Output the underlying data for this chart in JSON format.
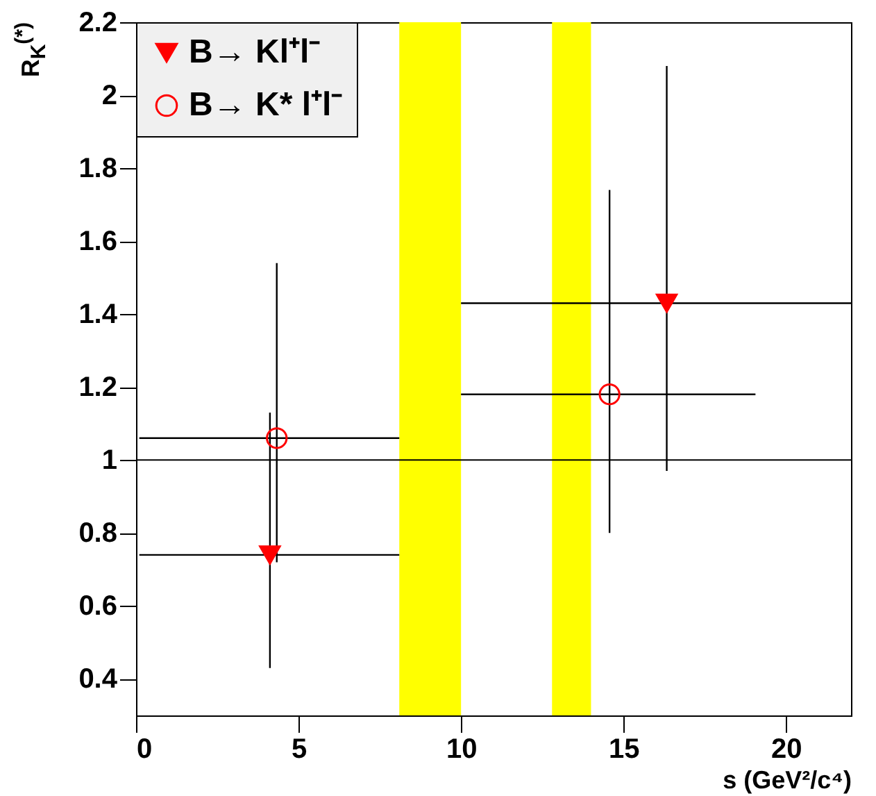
{
  "chart_data": {
    "type": "scatter",
    "xlabel": "s (GeV²/c⁴)",
    "ylabel": "R$_{K}$$^{(*)}$",
    "xlim": [
      0,
      22
    ],
    "xticks": [
      0,
      5,
      10,
      15,
      20
    ],
    "ylim": [
      0.3,
      2.2
    ],
    "yticks": [
      0.4,
      0.6,
      0.8,
      1,
      1.2,
      1.4,
      1.6,
      1.8,
      2,
      2.2
    ],
    "grid": false,
    "legend": "top left",
    "series": [
      {
        "name": "B→ Kl⁺l⁻",
        "color": "#ff0000",
        "marker": "triangle",
        "x": [
          4.12,
          16.33
        ],
        "values": [
          0.74,
          1.43
        ],
        "errors": [
          [
            0.43,
            1.13
          ],
          [
            0.97,
            2.08
          ]
        ],
        "xerrors": [
          [
            0.1,
            8.1
          ],
          [
            10,
            22
          ]
        ]
      },
      {
        "name": "B→ K* l⁺l⁻",
        "color": "#ff0000",
        "marker": "circle",
        "x": [
          4.33,
          14.57
        ],
        "values": [
          1.06,
          1.18
        ],
        "errors": [
          [
            0.72,
            1.54
          ],
          [
            0.8,
            1.74
          ]
        ],
        "xerrors": [
          [
            0.1,
            8.1
          ],
          [
            10,
            19.06
          ]
        ]
      }
    ],
    "ref_lines": [
      {
        "axis": "y",
        "value": 1,
        "color": "#000000"
      }
    ],
    "bands": [
      {
        "axis": "x",
        "from": 8.1,
        "to": 10,
        "color": "#ffff00"
      },
      {
        "axis": "x",
        "from": 12.8,
        "to": 14,
        "color": "#ffff00"
      }
    ]
  }
}
